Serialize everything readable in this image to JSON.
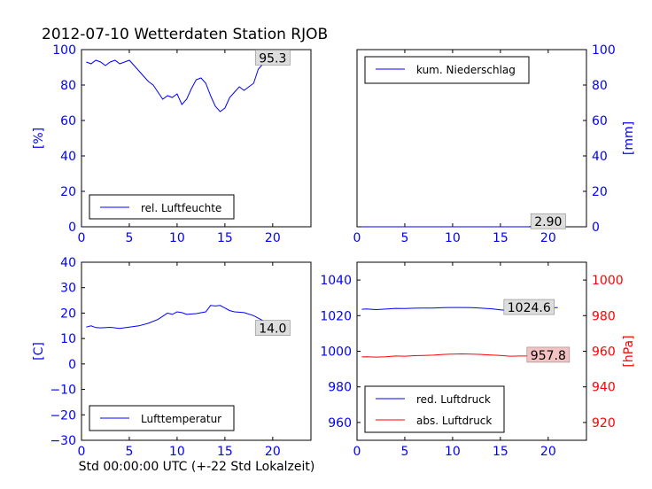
{
  "title": "2012-07-10 Wetterdaten Station RJOB",
  "footer": "Std 00:00:00 UTC (+-22 Std Lokalzeit)",
  "colors": {
    "blue": "#0000ff",
    "red": "#ff0000",
    "axis": "#000000",
    "label_bg": "#dddddd",
    "pink_bg": "#f4c2c2"
  },
  "chart_data": [
    {
      "type": "line",
      "panel": "humidity",
      "title": "",
      "xlabel": "",
      "ylabel": "[%]",
      "xlim": [
        0,
        24
      ],
      "ylim": [
        0,
        100
      ],
      "xticks": [
        0,
        5,
        10,
        15,
        20
      ],
      "yticks": [
        0,
        20,
        40,
        60,
        80,
        100
      ],
      "grid": false,
      "legend_position": "lower-left",
      "series": [
        {
          "name": "rel. Luftfeuchte",
          "color": "#0000ff",
          "x": [
            0.5,
            1.0,
            1.5,
            2.0,
            2.5,
            3.0,
            3.5,
            4.0,
            4.5,
            5.0,
            5.5,
            6.0,
            6.5,
            7.0,
            7.5,
            8.0,
            8.5,
            9.0,
            9.5,
            10.0,
            10.5,
            11.0,
            11.5,
            12.0,
            12.5,
            13.0,
            13.5,
            14.0,
            14.5,
            15.0,
            15.5,
            16.0,
            16.5,
            17.0,
            17.5,
            18.0,
            18.5,
            19.0,
            19.5,
            20.0,
            20.5,
            21.0
          ],
          "y": [
            93,
            92,
            94,
            93,
            91,
            93,
            94,
            92,
            93,
            94,
            91,
            88,
            85,
            82,
            80,
            76,
            72,
            74,
            73,
            75,
            69,
            72,
            78,
            83,
            84,
            81,
            74,
            68,
            65,
            67,
            73,
            76,
            79,
            77,
            79,
            81,
            89,
            92,
            95.3,
            95.3,
            95.3,
            95.3
          ]
        }
      ],
      "annotations": [
        {
          "label": "95.3",
          "x": 20,
          "y": 95.3
        }
      ]
    },
    {
      "type": "line",
      "panel": "precipitation",
      "title": "",
      "xlabel": "",
      "ylabel": "[mm]",
      "xlim": [
        0,
        24
      ],
      "ylim": [
        0,
        100
      ],
      "xticks": [
        0,
        5,
        10,
        15,
        20
      ],
      "yticks": [
        0,
        20,
        40,
        60,
        80,
        100
      ],
      "grid": false,
      "legend_position": "top-left",
      "series": [
        {
          "name": "kum. Niederschlag",
          "color": "#0000ff",
          "x": [
            0.5,
            5.0,
            10.0,
            15.0,
            18.0,
            18.5,
            19.0,
            19.5,
            20.0,
            20.5,
            21.0
          ],
          "y": [
            0,
            0,
            0,
            0,
            0,
            0.8,
            1.5,
            2.1,
            2.6,
            2.9,
            2.9
          ]
        }
      ],
      "annotations": [
        {
          "label": "2.90",
          "x": 20,
          "y": 2.9
        }
      ]
    },
    {
      "type": "line",
      "panel": "temperature",
      "title": "",
      "xlabel": "",
      "ylabel": "[C]",
      "xlim": [
        0,
        24
      ],
      "ylim": [
        -30,
        40
      ],
      "xticks": [
        0,
        5,
        10,
        15,
        20
      ],
      "yticks": [
        -30,
        -20,
        -10,
        0,
        10,
        20,
        30,
        40
      ],
      "grid": false,
      "legend_position": "lower-left",
      "series": [
        {
          "name": "Lufttemperatur",
          "color": "#0000ff",
          "x": [
            0.5,
            1.0,
            1.5,
            2.0,
            3.0,
            4.0,
            5.0,
            6.0,
            7.0,
            8.0,
            9.0,
            9.5,
            10.0,
            10.5,
            11.0,
            12.0,
            13.0,
            13.5,
            14.0,
            14.5,
            15.0,
            15.5,
            16.0,
            17.0,
            18.0,
            19.0,
            19.5,
            20.0,
            20.5,
            21.0
          ],
          "y": [
            14.5,
            15.0,
            14.3,
            14.2,
            14.4,
            14.0,
            14.5,
            15.0,
            16.0,
            17.5,
            20.0,
            19.5,
            20.5,
            20.2,
            19.5,
            19.8,
            20.5,
            23.0,
            22.8,
            23.0,
            22.0,
            21.0,
            20.5,
            20.2,
            19.0,
            17.0,
            15.5,
            14.5,
            14.0,
            14.0
          ]
        }
      ],
      "annotations": [
        {
          "label": "14.0",
          "x": 20,
          "y": 14.0
        }
      ]
    },
    {
      "type": "line",
      "panel": "pressure",
      "title": "",
      "xlabel": "",
      "ylabel": "[hPa]",
      "xlim": [
        0,
        24
      ],
      "ylim": [
        950,
        1050
      ],
      "ylim_right": [
        910,
        1010
      ],
      "xticks": [
        0,
        5,
        10,
        15,
        20
      ],
      "yticks": [
        960,
        980,
        1000,
        1020,
        1040
      ],
      "yticks_right": [
        920,
        940,
        960,
        980,
        1000
      ],
      "grid": false,
      "legend_position": "lower-left",
      "series": [
        {
          "name": "red. Luftdruck",
          "color": "#0000ff",
          "axis": "left",
          "x": [
            0.5,
            1.0,
            2.0,
            3.0,
            4.0,
            5.0,
            6.0,
            7.0,
            8.0,
            9.0,
            10.0,
            11.0,
            12.0,
            13.0,
            14.0,
            15.0,
            16.0,
            17.0,
            18.0,
            19.0,
            20.0,
            21.0
          ],
          "y": [
            1023.6,
            1023.8,
            1023.4,
            1023.7,
            1024.1,
            1024.0,
            1024.2,
            1024.3,
            1024.3,
            1024.5,
            1024.6,
            1024.6,
            1024.5,
            1024.2,
            1023.9,
            1023.3,
            1022.8,
            1022.9,
            1023.1,
            1023.6,
            1024.2,
            1024.6
          ]
        },
        {
          "name": "abs. Luftdruck",
          "color": "#ff0000",
          "axis": "right",
          "x": [
            0.5,
            1.0,
            2.0,
            3.0,
            4.0,
            5.0,
            6.0,
            7.0,
            8.0,
            9.0,
            10.0,
            11.0,
            12.0,
            13.0,
            14.0,
            15.0,
            16.0,
            17.0,
            18.0,
            19.0,
            20.0,
            21.0
          ],
          "y": [
            956.8,
            956.9,
            956.7,
            956.9,
            957.3,
            957.2,
            957.5,
            957.6,
            957.8,
            958.2,
            958.4,
            958.5,
            958.4,
            958.2,
            957.9,
            957.6,
            957.2,
            957.3,
            957.3,
            957.4,
            957.6,
            957.8
          ]
        }
      ],
      "annotations": [
        {
          "label": "1024.6",
          "x": 18,
          "y": 1024.6,
          "axis": "left"
        },
        {
          "label": "957.8",
          "x": 20,
          "y": 957.8,
          "axis": "right"
        }
      ]
    }
  ]
}
